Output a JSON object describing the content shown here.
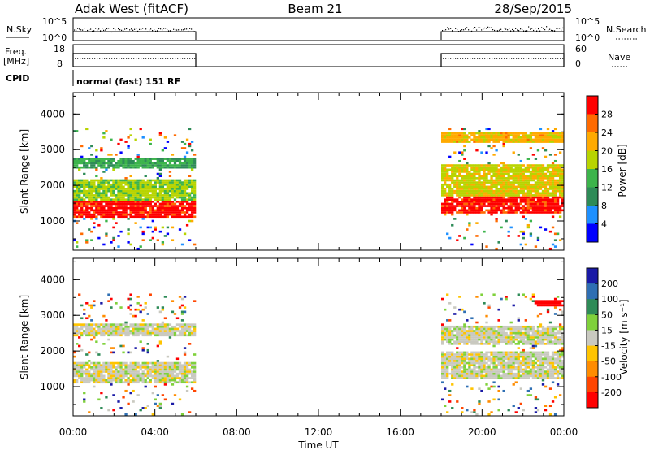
{
  "header": {
    "radar": "Adak West (fitACF)",
    "beam": "Beam 21",
    "date": "28/Sep/2015"
  },
  "noise_panel": {
    "left_label": "N.Sky",
    "right_label": "N.Search",
    "left_ticks": [
      "10^5",
      "10^0"
    ],
    "right_ticks": [
      "10^5",
      "10^0"
    ]
  },
  "freq_panel": {
    "left_label_line1": "Freq.",
    "left_label_line2": "[MHz]",
    "right_label": "Nave",
    "left_ticks": [
      "18",
      "8"
    ],
    "right_ticks": [
      "60",
      "0"
    ]
  },
  "cpid": {
    "label": "CPID",
    "value": "normal (fast) 151 RF"
  },
  "x_axis": {
    "label": "Time UT",
    "ticks": [
      "00:00",
      "04:00",
      "08:00",
      "12:00",
      "16:00",
      "20:00",
      "00:00"
    ]
  },
  "power_panel": {
    "ylabel": "Slant Range [km]",
    "yticks": [
      "4000",
      "3000",
      "2000",
      "1000"
    ],
    "colorbar_label": "Power [dB]",
    "colorbar_ticks": [
      "28",
      "24",
      "20",
      "16",
      "12",
      "8",
      "4"
    ],
    "colorbar_colors": [
      "#ff0000",
      "#ff6a00",
      "#ffaa00",
      "#b8d400",
      "#3cb44b",
      "#2e8b57",
      "#1e90ff",
      "#0000ff"
    ]
  },
  "velocity_panel": {
    "ylabel": "Slant Range [km]",
    "yticks": [
      "4000",
      "3000",
      "2000",
      "1000"
    ],
    "colorbar_label": "Velocity [m s⁻¹]",
    "colorbar_ticks": [
      "200",
      "100",
      "50",
      "15",
      "-15",
      "-50",
      "-100",
      "-200"
    ],
    "colorbar_colors": [
      "#1a1aa6",
      "#2f6fb3",
      "#2e8b57",
      "#7fd13b",
      "#c9c9c0",
      "#ffc400",
      "#ff8c00",
      "#ff4500",
      "#ff0000"
    ]
  },
  "chart_data": [
    {
      "type": "line",
      "title": "N.Sky / N.Search noise",
      "x": [
        "00:00",
        "06:00",
        "18:00",
        "00:00"
      ],
      "yscale": "log",
      "ylim": [
        1,
        100000
      ],
      "series": [
        {
          "name": "N.Sky",
          "segments": [
            [
              "00:00",
              "06:00"
            ],
            [
              "18:00",
              "00:00"
            ]
          ]
        },
        {
          "name": "N.Search",
          "segments": [
            [
              "00:00",
              "06:00"
            ],
            [
              "18:00",
              "00:00"
            ]
          ]
        }
      ]
    },
    {
      "type": "line",
      "title": "Freq. / Nave",
      "ylim": [
        8,
        18
      ],
      "y2lim": [
        0,
        60
      ],
      "series": [
        {
          "name": "Freq. [MHz]",
          "segments": [
            [
              "00:00",
              "06:00"
            ],
            [
              "18:00",
              "00:00"
            ]
          ]
        },
        {
          "name": "Nave",
          "segments": [
            [
              "00:00",
              "06:00"
            ],
            [
              "18:00",
              "00:00"
            ]
          ]
        }
      ]
    },
    {
      "type": "heatmap",
      "title": "Power [dB]",
      "xlabel": "Time UT",
      "ylabel": "Slant Range [km]",
      "xlim": [
        "00:00",
        "00:00"
      ],
      "ylim": [
        180,
        4600
      ],
      "clim": [
        0,
        30
      ],
      "data_intervals": [
        [
          "00:00",
          "06:00"
        ],
        [
          "18:00",
          "00:00"
        ]
      ],
      "features": [
        {
          "t0": 0.0,
          "t1": 6.0,
          "r0": 1100,
          "r1": 1600,
          "value": 28
        },
        {
          "t0": 0.0,
          "t1": 6.0,
          "r0": 1600,
          "r1": 2200,
          "value": 16
        },
        {
          "t0": 0.0,
          "t1": 6.0,
          "r0": 2500,
          "r1": 2800,
          "value": 12
        },
        {
          "t0": 18.0,
          "t1": 24.0,
          "r0": 1200,
          "r1": 1700,
          "value": 28
        },
        {
          "t0": 18.0,
          "t1": 24.0,
          "r0": 1700,
          "r1": 2600,
          "value": 18
        },
        {
          "t0": 18.0,
          "t1": 24.0,
          "r0": 3200,
          "r1": 3500,
          "value": 20
        }
      ]
    },
    {
      "type": "heatmap",
      "title": "Velocity [m s⁻¹]",
      "xlabel": "Time UT",
      "ylabel": "Slant Range [km]",
      "xlim": [
        "00:00",
        "00:00"
      ],
      "ylim": [
        180,
        4600
      ],
      "clim": [
        -200,
        200
      ],
      "data_intervals": [
        [
          "00:00",
          "06:00"
        ],
        [
          "18:00",
          "00:00"
        ]
      ],
      "features": [
        {
          "t0": 0.0,
          "t1": 6.0,
          "r0": 1100,
          "r1": 1700,
          "value": 0
        },
        {
          "t0": 0.0,
          "t1": 6.0,
          "r0": 2400,
          "r1": 2800,
          "value": 0
        },
        {
          "t0": 18.0,
          "t1": 24.0,
          "r0": 1200,
          "r1": 2000,
          "value": 0
        },
        {
          "t0": 18.0,
          "t1": 24.0,
          "r0": 2200,
          "r1": 2700,
          "value": 0
        },
        {
          "t0": 22.5,
          "t1": 24.0,
          "r0": 3250,
          "r1": 3450,
          "value": -200
        }
      ]
    }
  ]
}
